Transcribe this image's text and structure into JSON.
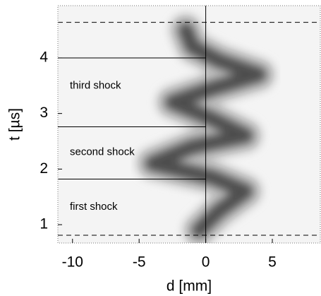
{
  "chart_data": {
    "type": "line",
    "xlabel": "d [mm]",
    "ylabel": "t [µs]",
    "x": [
      -0.5,
      1.0,
      3.0,
      0.5,
      -4.0,
      -1.0,
      3.0,
      0.5,
      -2.5,
      0.5,
      4.0,
      1.0,
      -1.0,
      -1.5
    ],
    "values": [
      0.9,
      1.25,
      1.6,
      1.85,
      2.1,
      2.4,
      2.6,
      2.9,
      3.2,
      3.45,
      3.7,
      3.95,
      4.2,
      4.5
    ],
    "color": "#3a3a3a",
    "xlim": [
      -11.1,
      8.6
    ],
    "ylim": [
      0.67,
      4.94
    ],
    "xticks": [
      -10,
      -5,
      0,
      5
    ],
    "yticks": [
      1,
      2,
      3,
      4
    ],
    "hlines": [
      4.0,
      2.76,
      1.82
    ],
    "dashed_hlines": [
      4.64,
      0.81
    ],
    "vline": 0,
    "annotations": [
      {
        "text": "third shock",
        "x": -10.2,
        "y": 3.5
      },
      {
        "text": "second shock",
        "x": -10.2,
        "y": 2.3
      },
      {
        "text": "first shock",
        "x": -10.2,
        "y": 1.32
      }
    ]
  }
}
